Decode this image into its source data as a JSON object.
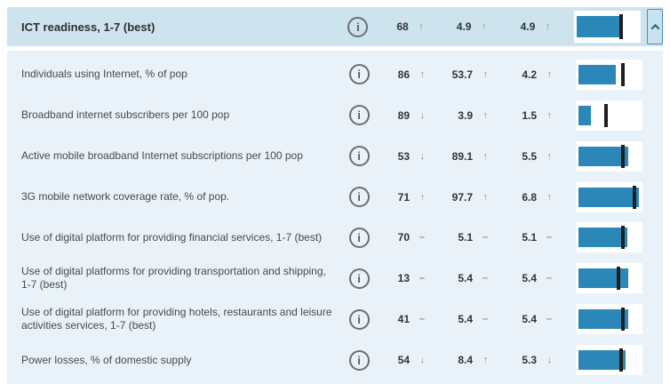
{
  "panel": {
    "header": {
      "label": "ICT readiness, 1-7 (best)",
      "info_icon": "i",
      "rank": "68",
      "rank_trend": "↑",
      "value": "4.9",
      "value_trend": "↑",
      "score": "4.9",
      "score_trend": "↑",
      "bar_pct": 65,
      "marker_pct": 70
    },
    "rows": [
      {
        "label": "Individuals using Internet, % of pop",
        "info_icon": "i",
        "rank": "86",
        "rank_trend": "↑",
        "value": "53.7",
        "value_trend": "↑",
        "score": "4.2",
        "score_trend": "↑",
        "bar_pct": 56,
        "marker_pct": 70
      },
      {
        "label": "Broadband internet subscribers per 100 pop",
        "info_icon": "i",
        "rank": "89",
        "rank_trend": "↓",
        "value": "3.9",
        "value_trend": "↑",
        "score": "1.5",
        "score_trend": "↑",
        "bar_pct": 19,
        "marker_pct": 45
      },
      {
        "label": "Active mobile broadband Internet subscriptions per 100 pop",
        "info_icon": "i",
        "rank": "53",
        "rank_trend": "↓",
        "value": "89.1",
        "value_trend": "↑",
        "score": "5.5",
        "score_trend": "↑",
        "bar_pct": 75,
        "marker_pct": 71
      },
      {
        "label": "3G mobile network coverage rate, % of pop.",
        "info_icon": "i",
        "rank": "71",
        "rank_trend": "↑",
        "value": "97.7",
        "value_trend": "↑",
        "score": "6.8",
        "score_trend": "↑",
        "bar_pct": 90,
        "marker_pct": 88
      },
      {
        "label": "Use of digital platform for providing financial services, 1-7 (best)",
        "info_icon": "i",
        "rank": "70",
        "rank_trend": "–",
        "value": "5.1",
        "value_trend": "–",
        "score": "5.1",
        "score_trend": "–",
        "bar_pct": 73,
        "marker_pct": 71
      },
      {
        "label": "Use of digital platforms for providing transportation and shipping, 1-7 (best)",
        "info_icon": "i",
        "rank": "13",
        "rank_trend": "–",
        "value": "5.4",
        "value_trend": "–",
        "score": "5.4",
        "score_trend": "–",
        "bar_pct": 75,
        "marker_pct": 64
      },
      {
        "label": "Use of digital platform for providing hotels, restaurants and leisure activities services, 1-7 (best)",
        "info_icon": "i",
        "rank": "41",
        "rank_trend": "–",
        "value": "5.4",
        "value_trend": "–",
        "score": "5.4",
        "score_trend": "–",
        "bar_pct": 74,
        "marker_pct": 70
      },
      {
        "label": "Power losses, % of domestic supply",
        "info_icon": "i",
        "rank": "54",
        "rank_trend": "↓",
        "value": "8.4",
        "value_trend": "↑",
        "score": "5.3",
        "score_trend": "↓",
        "bar_pct": 70,
        "marker_pct": 68
      }
    ],
    "colors": {
      "header_bg": "#cde4ef",
      "body_bg": "#e9f2f8",
      "bar_blue": "#2b87b8",
      "marker_black": "#1f1f1f",
      "collapse_border": "#3f8fc0"
    }
  }
}
